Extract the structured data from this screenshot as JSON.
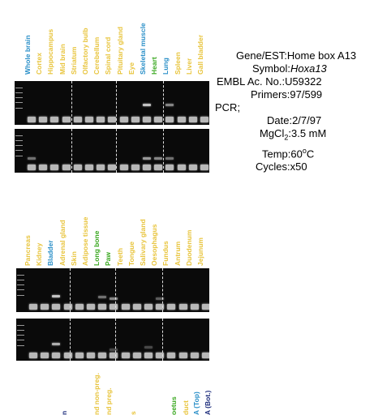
{
  "colors": {
    "yellow": "#e8c43c",
    "blue": "#2a8fc8",
    "green": "#3aa820",
    "navy": "#1a2a7a"
  },
  "panel1": {
    "lanes": [
      {
        "label": "Whole brain",
        "color": "blue"
      },
      {
        "label": "Cortex",
        "color": "yellow"
      },
      {
        "label": "Hippocampus",
        "color": "yellow"
      },
      {
        "label": "Mid brain",
        "color": "yellow"
      },
      {
        "label": "Striatum",
        "color": "yellow"
      },
      {
        "label": "Olfactory bulb",
        "color": "yellow"
      },
      {
        "label": "Cerebellum",
        "color": "yellow"
      },
      {
        "label": "Spinal cord",
        "color": "yellow"
      },
      {
        "label": "Pituitary gland",
        "color": "yellow"
      },
      {
        "label": "Eye",
        "color": "yellow"
      },
      {
        "label": "Skeletal muscle",
        "color": "blue"
      },
      {
        "label": "Heart",
        "color": "green"
      },
      {
        "label": "Lung",
        "color": "blue"
      },
      {
        "label": "Spleen",
        "color": "yellow"
      },
      {
        "label": "Liver",
        "color": "yellow"
      },
      {
        "label": "Gall bladder",
        "color": "yellow"
      }
    ]
  },
  "panel2": {
    "lanes": [
      {
        "label": "Pancreas",
        "color": "yellow"
      },
      {
        "label": "Kidney",
        "color": "yellow"
      },
      {
        "label": "Bladder",
        "color": "blue"
      },
      {
        "label": "Adrenal gland",
        "color": "yellow"
      },
      {
        "label": "Skin",
        "color": "yellow"
      },
      {
        "label": "Adipose tissue",
        "color": "yellow"
      },
      {
        "label": "Long bone",
        "color": "green"
      },
      {
        "label": "Paw",
        "color": "green"
      },
      {
        "label": "Teeth",
        "color": "yellow"
      },
      {
        "label": "Tongue",
        "color": "yellow"
      },
      {
        "label": "Salivary gland",
        "color": "yellow"
      },
      {
        "label": "Oesophagus",
        "color": "yellow"
      },
      {
        "label": "Fundus",
        "color": "yellow"
      },
      {
        "label": "Antrum",
        "color": "yellow"
      },
      {
        "label": "Duodenum",
        "color": "yellow"
      },
      {
        "label": "Jejunum",
        "color": "yellow"
      }
    ]
  },
  "panel3": {
    "lanes": [
      {
        "label": "n",
        "color": "navy"
      },
      {
        "label": "nd non-preg.",
        "color": "yellow"
      },
      {
        "label": "nd preg.",
        "color": "yellow"
      },
      {
        "label": "s",
        "color": "yellow"
      },
      {
        "label": "oetus",
        "color": "green"
      },
      {
        "label": "duct",
        "color": "yellow"
      },
      {
        "label": "A (Top)",
        "color": "blue"
      },
      {
        "label": "A (Bot.)",
        "color": "navy"
      }
    ]
  },
  "info": {
    "gene_label": "Gene/EST:",
    "gene_value": "Home box A13",
    "symbol_label": "Symbol:",
    "symbol_value": "Hoxa13",
    "embl_label": "EMBL Ac. No.:",
    "embl_value": "U59322",
    "primers_label": "Primers:",
    "primers_value": "97/599",
    "pcr_label": "PCR;",
    "date_label": "Date:",
    "date_value": "2/7/97",
    "mgcl_label": "MgCl",
    "mgcl_sub": "2",
    "mgcl_sep": ":",
    "mgcl_value": "3.5 mM",
    "temp_label": "Temp:",
    "temp_value": "60",
    "temp_sup": "o",
    "temp_unit": "C",
    "cycles_label": "Cycles:",
    "cycles_value": "x50"
  }
}
